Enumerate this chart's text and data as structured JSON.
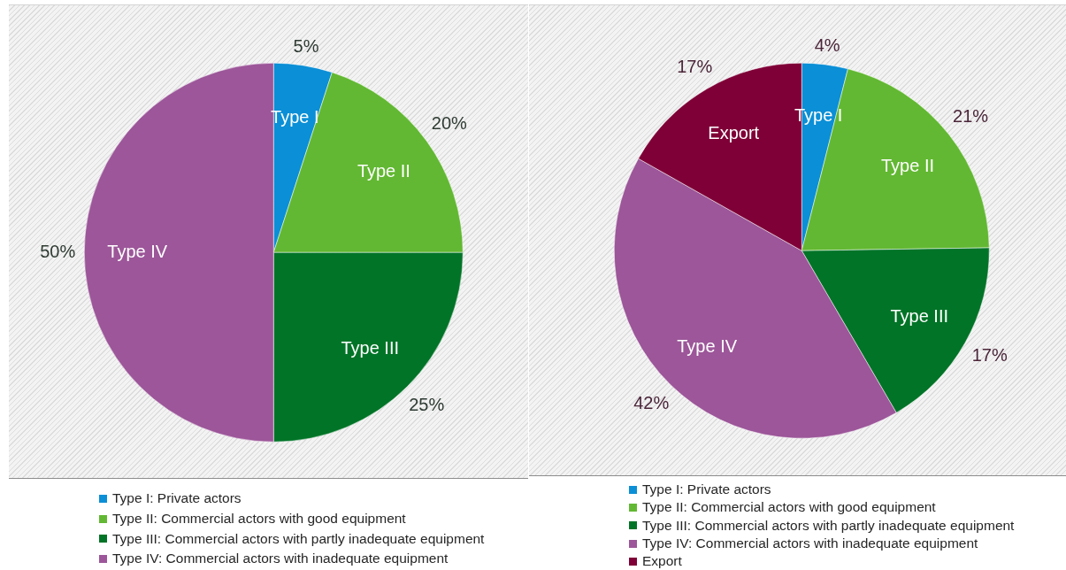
{
  "chart_data": [
    {
      "type": "pie",
      "categories": [
        "Type I: Private actors",
        "Type II: Commercial actors with good equipment",
        "Type III: Commercial actors with partly inadequate equipment",
        "Type IV: Commercial actors with inadequate equipment"
      ],
      "values": [
        5,
        20,
        25,
        50
      ],
      "colors": [
        "#0b8fd6",
        "#62b832",
        "#017427",
        "#9c5699"
      ],
      "value_labels": [
        "5%",
        "20%",
        "25%",
        "50%"
      ],
      "annotations": [
        "Type I",
        "Type II",
        "Type III",
        "Type IV"
      ],
      "legend": "bottom"
    },
    {
      "type": "pie",
      "categories": [
        "Type I: Private actors",
        "Type II: Commercial actors with good equipment",
        "Type III: Commercial actors with partly inadequate equipment",
        "Type IV: Commercial actors with inadequate equipment",
        "Export"
      ],
      "values": [
        4,
        21,
        17,
        42,
        17
      ],
      "colors": [
        "#0b8fd6",
        "#62b832",
        "#017427",
        "#9c5699",
        "#7f0037"
      ],
      "value_labels": [
        "4%",
        "21%",
        "17%",
        "42%",
        "17%"
      ],
      "annotations": [
        "Type I",
        "Type II",
        "Type III",
        "Type IV",
        "Export"
      ],
      "legend": "bottom"
    }
  ]
}
